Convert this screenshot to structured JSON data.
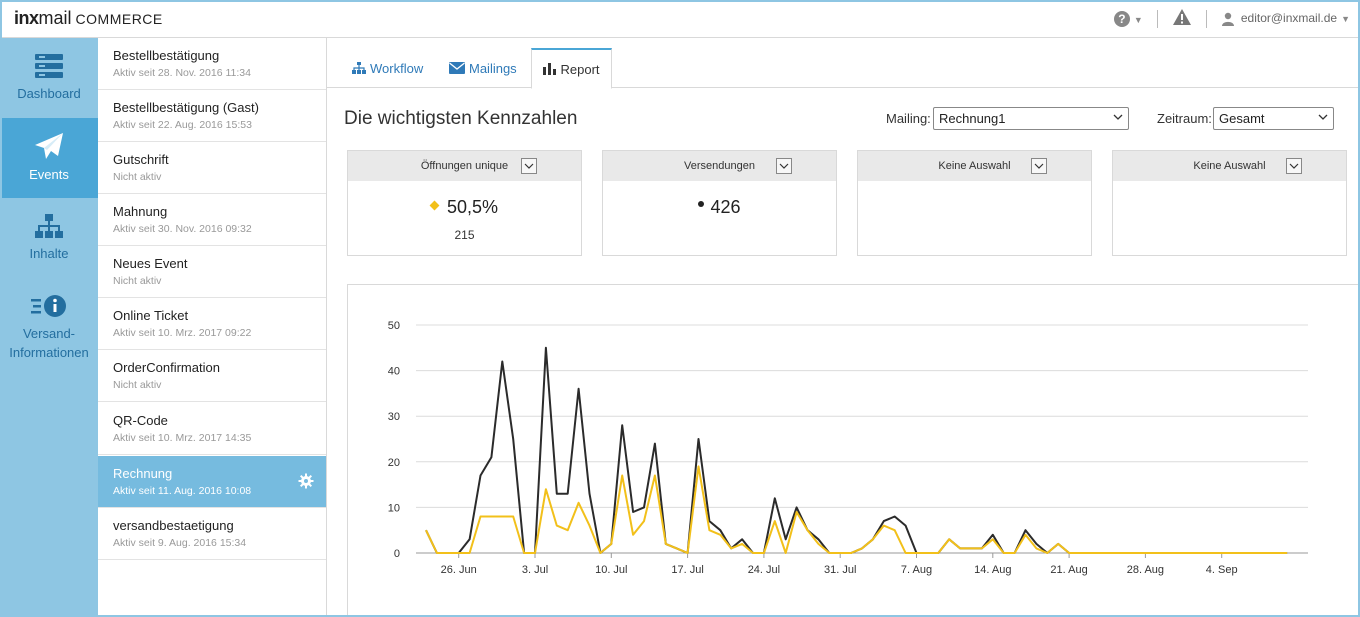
{
  "app": {
    "logo_bold": "inx",
    "logo_mail": "mail",
    "logo_suffix": "COMMERCE"
  },
  "topbar": {
    "help_icon": "question-circle-icon",
    "alert_icon": "warning-triangle-icon",
    "user": "editor@inxmail.de"
  },
  "nav": [
    {
      "label": "Dashboard",
      "icon": "server-stack-icon"
    },
    {
      "label": "Events",
      "icon": "paper-plane-icon",
      "active": true
    },
    {
      "label": "Inhalte",
      "icon": "sitemap-icon"
    },
    {
      "label": "Versand-",
      "label2": "Informationen",
      "icon": "info-list-icon"
    }
  ],
  "events": [
    {
      "name": "Bestellbestätigung",
      "status": "Aktiv seit 28. Nov. 2016 11:34"
    },
    {
      "name": "Bestellbestätigung (Gast)",
      "status": "Aktiv seit 22. Aug. 2016 15:53"
    },
    {
      "name": "Gutschrift",
      "status": "Nicht aktiv"
    },
    {
      "name": "Mahnung",
      "status": "Aktiv seit 30. Nov. 2016 09:32"
    },
    {
      "name": "Neues Event",
      "status": "Nicht aktiv"
    },
    {
      "name": "Online Ticket",
      "status": "Aktiv seit 10. Mrz. 2017 09:22"
    },
    {
      "name": "OrderConfirmation",
      "status": "Nicht aktiv"
    },
    {
      "name": "QR-Code",
      "status": "Aktiv seit 10. Mrz. 2017 14:35"
    },
    {
      "name": "Rechnung",
      "status": "Aktiv seit 11. Aug. 2016 10:08",
      "selected": true
    },
    {
      "name": "versandbestaetigung",
      "status": "Aktiv seit 9. Aug. 2016 15:34"
    }
  ],
  "tabs": [
    {
      "label": "Workflow",
      "icon": "sitemap-icon"
    },
    {
      "label": "Mailings",
      "icon": "envelope-icon"
    },
    {
      "label": "Report",
      "icon": "bar-chart-icon",
      "active": true
    }
  ],
  "report": {
    "title": "Die wichtigsten Kennzahlen",
    "mailing_label": "Mailing:",
    "mailing_value": "Rechnung1",
    "period_label": "Zeitraum:",
    "period_value": "Gesamt"
  },
  "kpis": [
    {
      "title": "Öffnungen unique",
      "value": "50,5%",
      "sub": "215",
      "marker_color": "#f2c01a"
    },
    {
      "title": "Versendungen",
      "value": "426",
      "sub": "",
      "marker_color": "#222222"
    },
    {
      "title": "Keine Auswahl",
      "value": "",
      "sub": ""
    },
    {
      "title": "Keine Auswahl",
      "value": "",
      "sub": ""
    }
  ],
  "chart_data": {
    "type": "line",
    "ylim": [
      0,
      50
    ],
    "yticks": [
      0,
      10,
      20,
      30,
      40,
      50
    ],
    "x_start": "2016-06-23",
    "x_ticks": [
      "26. Jun",
      "3. Jul",
      "10. Jul",
      "17. Jul",
      "24. Jul",
      "31. Jul",
      "7. Aug",
      "14. Aug",
      "21. Aug",
      "28. Aug",
      "4. Sep"
    ],
    "series": [
      {
        "color": "#2b2b2b",
        "values": [
          5,
          0,
          0,
          0,
          3,
          17,
          21,
          42,
          25,
          0,
          0,
          45,
          13,
          13,
          36,
          13,
          0,
          2,
          28,
          9,
          10,
          24,
          2,
          1,
          0,
          25,
          7,
          5,
          1,
          3,
          0,
          0,
          12,
          3,
          10,
          5,
          3,
          0,
          0,
          0,
          1,
          3,
          7,
          8,
          6,
          0,
          0,
          0,
          3,
          1,
          1,
          1,
          4,
          0,
          0,
          5,
          2,
          0,
          2,
          0,
          0,
          0,
          0,
          0,
          0,
          0,
          0,
          0,
          0,
          0,
          0,
          0,
          0,
          0,
          0,
          0,
          0,
          0,
          0,
          0
        ]
      },
      {
        "color": "#f2c01a",
        "values": [
          5,
          0,
          0,
          0,
          0,
          8,
          8,
          8,
          8,
          0,
          0,
          14,
          6,
          5,
          11,
          6,
          0,
          2,
          17,
          4,
          7,
          17,
          2,
          1,
          0,
          19,
          5,
          4,
          1,
          2,
          0,
          0,
          7,
          0,
          9,
          5,
          2,
          0,
          0,
          0,
          1,
          3,
          6,
          5,
          0,
          0,
          0,
          0,
          3,
          1,
          1,
          1,
          3,
          0,
          0,
          4,
          1,
          0,
          2,
          0,
          0,
          0,
          0,
          0,
          0,
          0,
          0,
          0,
          0,
          0,
          0,
          0,
          0,
          0,
          0,
          0,
          0,
          0,
          0,
          0
        ]
      }
    ]
  }
}
